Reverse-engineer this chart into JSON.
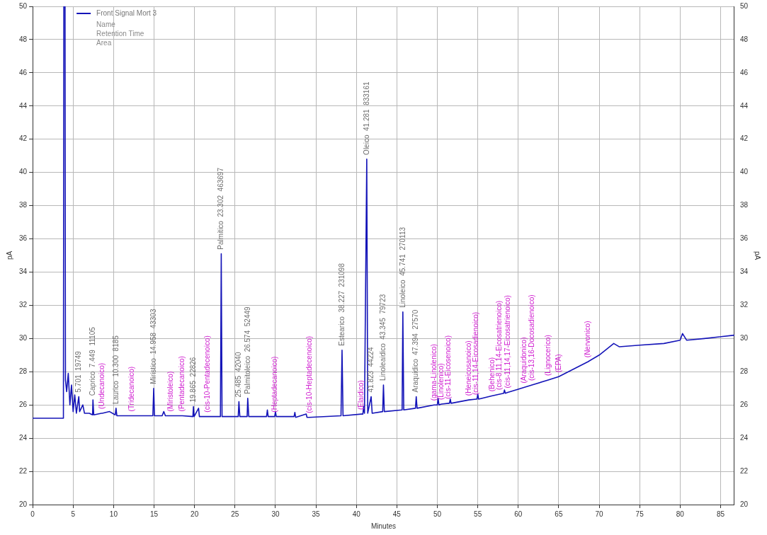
{
  "chart_data": {
    "type": "line",
    "xlabel": "Minutes",
    "ylabel": "pA",
    "y2label": "pA",
    "xlim": [
      0,
      86.7
    ],
    "xticks": [
      0,
      5,
      10,
      15,
      20,
      25,
      30,
      35,
      40,
      45,
      50,
      55,
      60,
      65,
      70,
      75,
      80,
      85
    ],
    "ylim": [
      20,
      50
    ],
    "yticks": [
      20,
      22,
      24,
      26,
      28,
      30,
      32,
      34,
      36,
      38,
      40,
      42,
      44,
      46,
      48,
      50
    ],
    "y2lim": [
      20,
      50
    ],
    "y2ticks": [
      20,
      22,
      24,
      26,
      28,
      30,
      32,
      34,
      36,
      38,
      40,
      42,
      44,
      46,
      48,
      50
    ],
    "grid": true,
    "legend": "top left",
    "marker": "none",
    "line_style": "solid",
    "series": [
      {
        "name": "Front Signal Mort 3",
        "color": "#1414b8",
        "x": [
          0,
          3.8,
          3.85,
          4.0,
          4.05,
          4.2,
          4.4,
          4.6,
          4.8,
          5.0,
          5.2,
          5.4,
          5.701,
          5.8,
          6.2,
          6.4,
          7.0,
          7.4,
          7.449,
          7.55,
          8.5,
          8.6,
          9.5,
          10.2,
          10.3,
          10.4,
          12,
          12.3,
          14.85,
          14.958,
          15.05,
          16,
          16.2,
          16.4,
          17.1,
          18.5,
          19.8,
          19.865,
          19.95,
          20.5,
          20.6,
          21.6,
          23.2,
          23.302,
          23.4,
          25.4,
          25.485,
          25.6,
          26.5,
          26.574,
          26.7,
          28.9,
          29.0,
          29.1,
          29.9,
          30.0,
          30.1,
          32.3,
          32.4,
          32.5,
          33.8,
          33.9,
          34.2,
          38.1,
          38.227,
          38.35,
          40.6,
          40.8,
          40.9,
          41.0,
          41.281,
          41.4,
          41.823,
          41.95,
          43.25,
          43.345,
          43.45,
          45.65,
          45.741,
          45.85,
          47.3,
          47.394,
          47.5,
          49.6,
          50.0,
          50.1,
          50.2,
          50.5,
          51.4,
          51.5,
          51.6,
          51.7,
          53.9,
          54.8,
          54.9,
          55.0,
          55.1,
          56.8,
          57.7,
          58.2,
          58.3,
          58.4,
          58.7,
          60,
          60.7,
          61.7,
          63.7,
          65,
          68.6,
          70,
          71.8,
          72.5,
          75,
          78,
          80,
          80.3,
          80.8,
          83,
          86.7
        ],
        "values": [
          25.2,
          25.2,
          50,
          50,
          27.5,
          26.8,
          27.9,
          26.0,
          27.2,
          25.6,
          26.6,
          25.5,
          26.5,
          25.6,
          26.0,
          25.5,
          25.5,
          25.4,
          26.3,
          25.4,
          25.5,
          25.5,
          25.6,
          25.4,
          25.8,
          25.35,
          25.35,
          25.35,
          25.35,
          27.0,
          25.35,
          25.35,
          25.6,
          25.35,
          25.35,
          25.35,
          25.3,
          25.9,
          25.3,
          25.8,
          25.3,
          25.3,
          25.3,
          35.1,
          25.3,
          25.3,
          26.2,
          25.3,
          25.3,
          26.4,
          25.3,
          25.3,
          25.7,
          25.3,
          25.3,
          25.6,
          25.3,
          25.3,
          25.55,
          25.25,
          25.45,
          25.25,
          25.25,
          25.35,
          29.3,
          25.35,
          25.45,
          25.45,
          25.9,
          25.5,
          40.8,
          25.5,
          26.5,
          25.5,
          25.6,
          27.2,
          25.6,
          25.7,
          31.6,
          25.7,
          25.8,
          26.5,
          25.8,
          26.0,
          26.0,
          26.4,
          26.0,
          26.05,
          26.1,
          26.1,
          26.35,
          26.1,
          26.3,
          26.35,
          26.35,
          26.65,
          26.35,
          26.55,
          26.65,
          26.7,
          26.9,
          26.7,
          26.75,
          26.95,
          27.05,
          27.2,
          27.5,
          27.7,
          28.6,
          29.0,
          29.7,
          29.5,
          29.6,
          29.7,
          29.9,
          30.3,
          29.9,
          30.0,
          30.2
        ]
      }
    ],
    "annotations": [
      "Name",
      "Retention Time",
      "Area",
      {
        "text": "5.701  19749",
        "x": 5.701,
        "y": 26.5
      },
      {
        "text": "Caprico  7.449  11105",
        "x": 7.449,
        "y": 26.3
      },
      {
        "text": "(Undecanoico)",
        "x": 8.6,
        "y": 25.5
      },
      {
        "text": "Laurico  10.300  8185",
        "x": 10.3,
        "y": 25.8
      },
      {
        "text": "(Tridecanoico)",
        "x": 12.3,
        "y": 25.35
      },
      {
        "text": "Miristico  14.958  43303",
        "x": 14.958,
        "y": 27.0
      },
      {
        "text": "(Miristoleico)",
        "x": 17.1,
        "y": 25.35
      },
      {
        "text": "(Pentadecanoico)",
        "x": 18.5,
        "y": 25.35
      },
      {
        "text": "19.865  22826",
        "x": 19.865,
        "y": 25.9
      },
      {
        "text": "(cis-10-Pentadecenoico)",
        "x": 21.6,
        "y": 25.3
      },
      {
        "text": "Palmitico  23.302  463697",
        "x": 23.302,
        "y": 35.1
      },
      {
        "text": "25.485  42040",
        "x": 25.485,
        "y": 26.2
      },
      {
        "text": "Palmitoleico  26.574  52449",
        "x": 26.574,
        "y": 26.4
      },
      {
        "text": "(Heptadecanoico)",
        "x": 29.9,
        "y": 25.3
      },
      {
        "text": "(cis-10-Heptadecenoico)",
        "x": 34.2,
        "y": 25.25
      },
      {
        "text": "Estearico  38.227  231098",
        "x": 38.227,
        "y": 29.3
      },
      {
        "text": "(Elaidico)",
        "x": 40.6,
        "y": 25.45
      },
      {
        "text": "Oleico  41.281  833161",
        "x": 41.281,
        "y": 40.8
      },
      {
        "text": "41.823  44224",
        "x": 41.823,
        "y": 26.5
      },
      {
        "text": "Linoleaidico  43.345  79723",
        "x": 43.345,
        "y": 27.2
      },
      {
        "text": "Linoleico  45.741  270113",
        "x": 45.741,
        "y": 31.6
      },
      {
        "text": "Araquidico  47.394  27570",
        "x": 47.394,
        "y": 26.5
      },
      {
        "text": "(gama-Linolenico)",
        "x": 49.6,
        "y": 26.0
      },
      {
        "text": "(Linolenico)",
        "x": 50.5,
        "y": 26.05
      },
      {
        "text": "(cis-11-Eicosenoico)",
        "x": 51.4,
        "y": 26.1
      },
      {
        "text": "(Heneicosanoico)",
        "x": 53.9,
        "y": 26.3
      },
      {
        "text": "(cis-11,14-Eicosadienoico)",
        "x": 54.8,
        "y": 26.35
      },
      {
        "text": "(Behenico)",
        "x": 56.8,
        "y": 26.55
      },
      {
        "text": "(cis-8,11,14-Eicosatrienoico)",
        "x": 57.7,
        "y": 26.65
      },
      {
        "text": "(cis-11,14,17-Eicosatrienoico)",
        "x": 58.7,
        "y": 26.75
      },
      {
        "text": "(Araquidonico)",
        "x": 60.7,
        "y": 27.05
      },
      {
        "text": "(cis-13,16-Docosadienoico)",
        "x": 61.7,
        "y": 27.2
      },
      {
        "text": "(Lignocerico)",
        "x": 63.7,
        "y": 27.5
      },
      {
        "text": "(EPA)",
        "x": 65,
        "y": 27.7
      },
      {
        "text": "(Nervonico)",
        "x": 68.6,
        "y": 28.6
      }
    ]
  }
}
